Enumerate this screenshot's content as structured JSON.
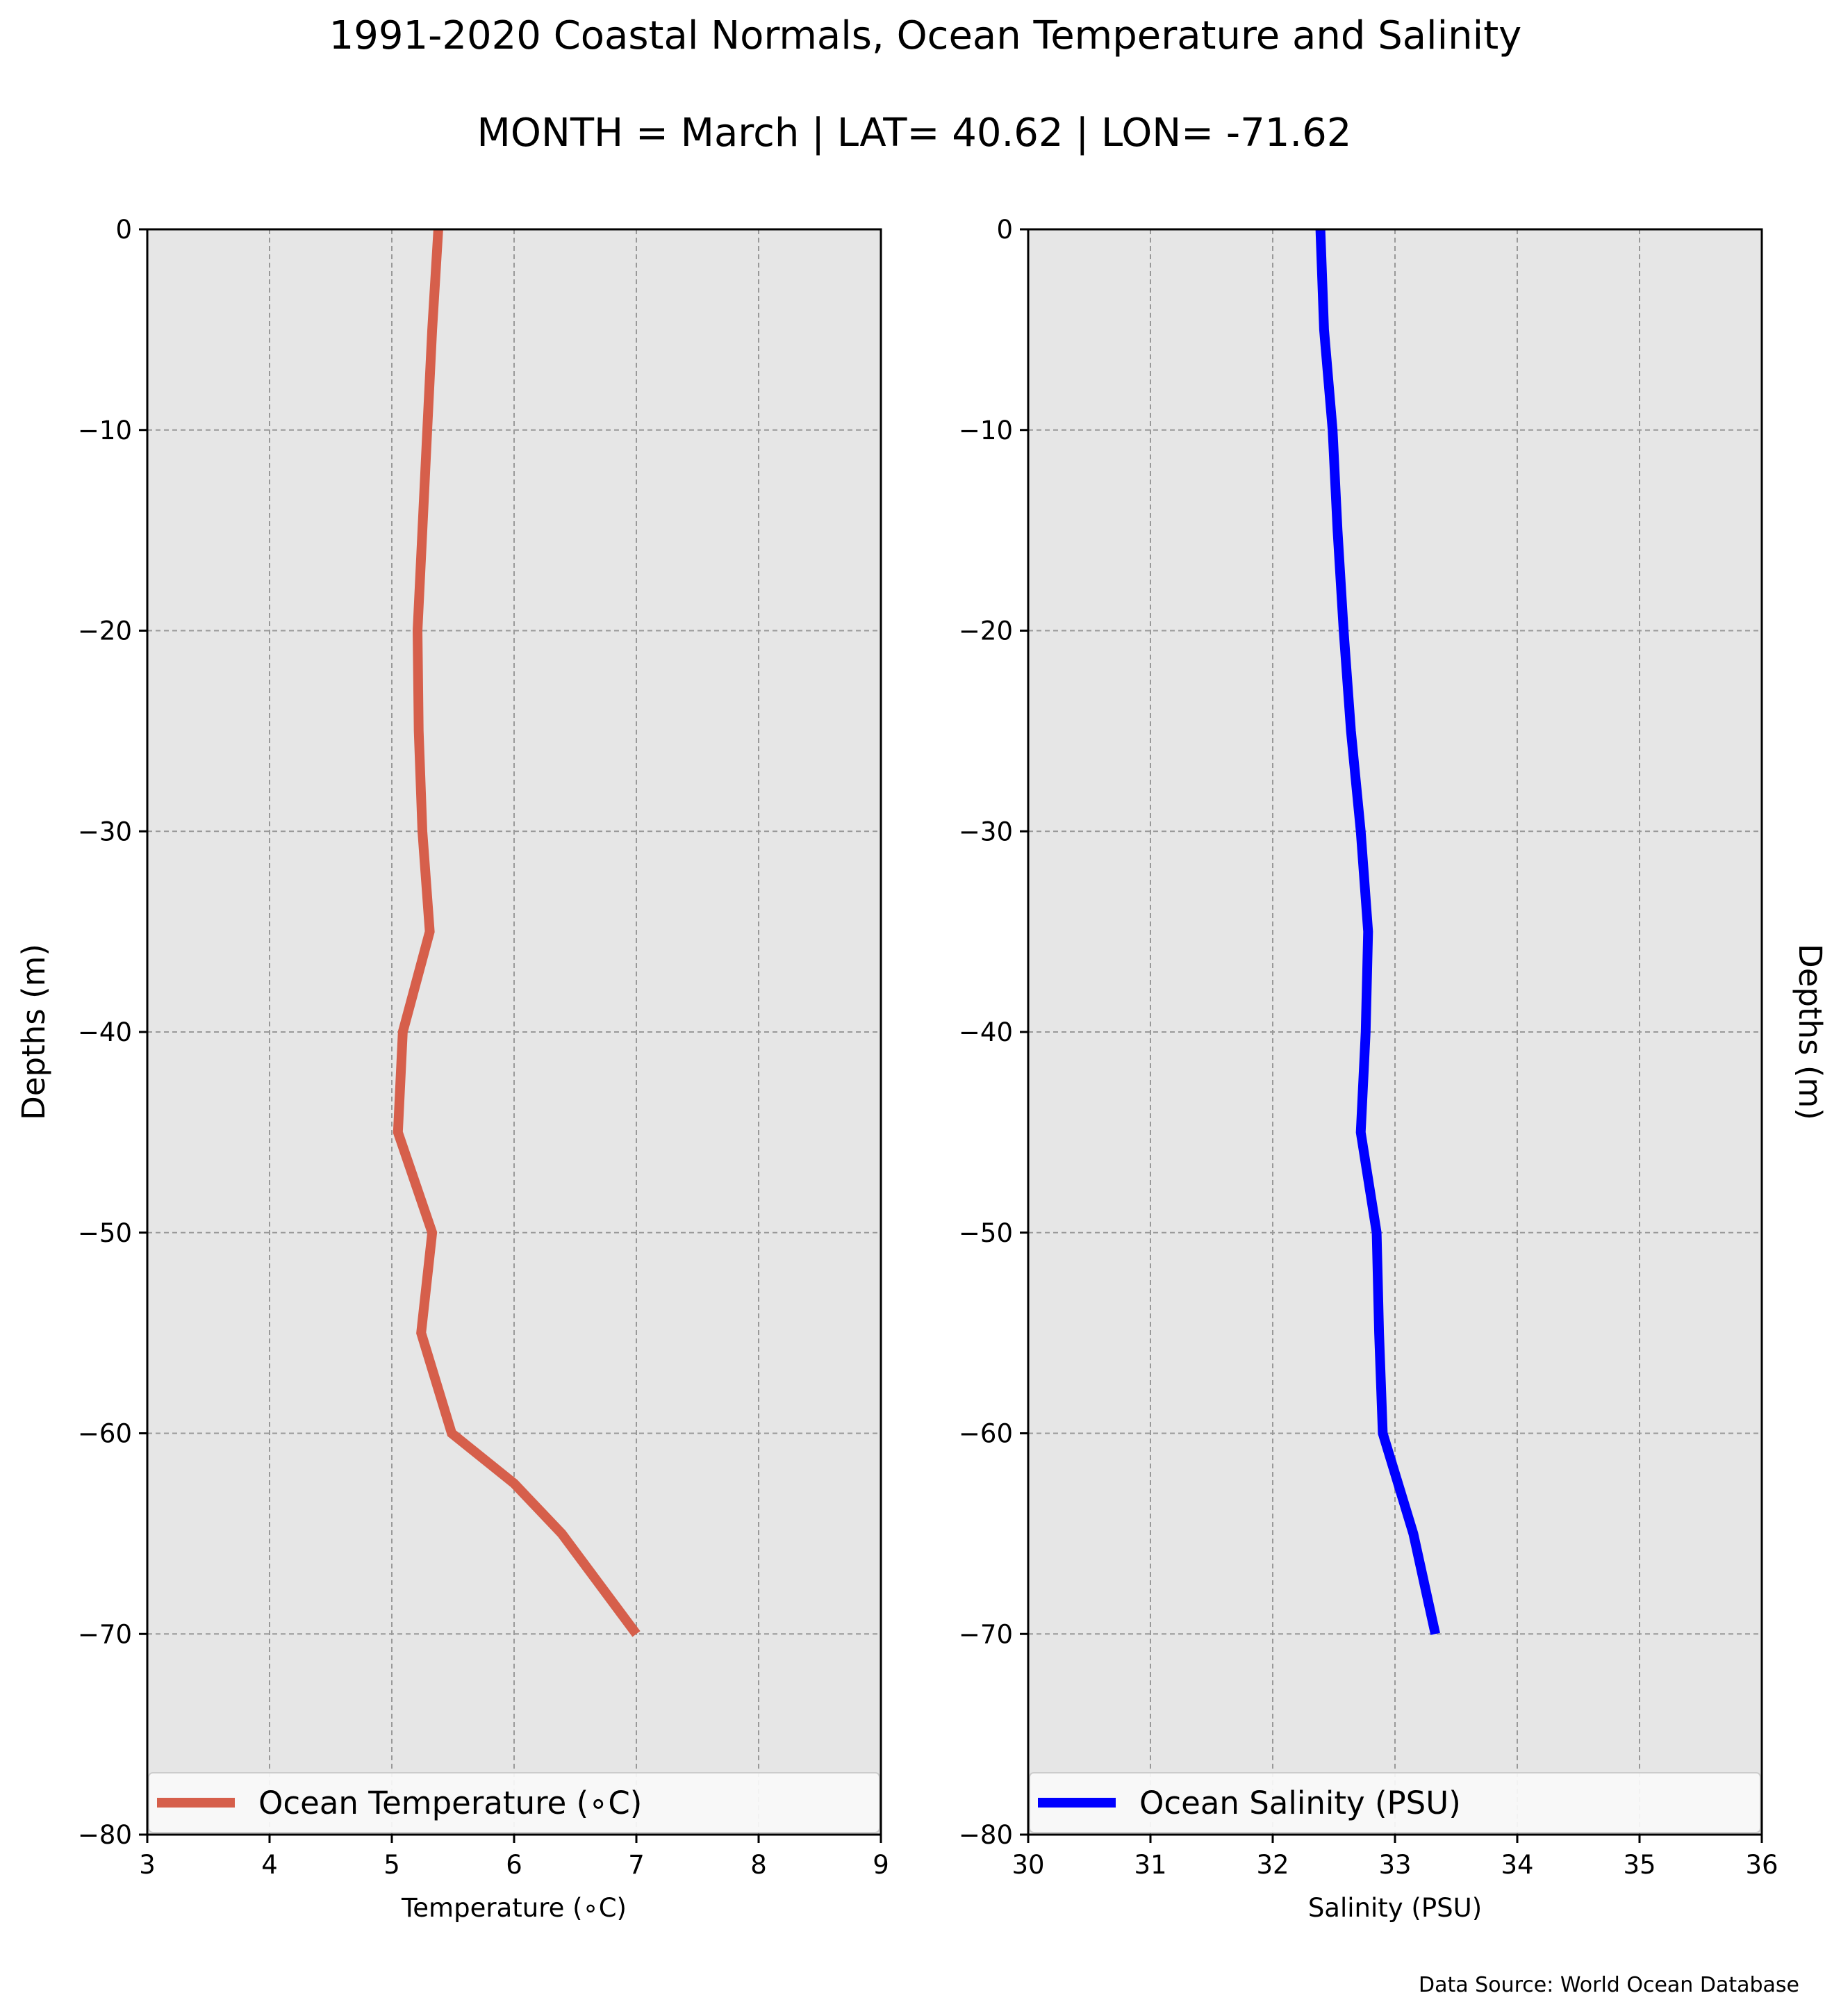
{
  "title": "1991-2020 Coastal Normals, Ocean Temperature and Salinity",
  "subtitle": "MONTH = March | LAT= 40.62 | LON= -71.62",
  "source_note": "Data Source: World Ocean Database",
  "chart_data": [
    {
      "type": "line",
      "xlabel": "Temperature (∘C)",
      "ylabel": "Depths (m)",
      "xlim": [
        3,
        9
      ],
      "ylim": [
        -80,
        0
      ],
      "xticks": [
        "3",
        "4",
        "5",
        "6",
        "7",
        "8",
        "9"
      ],
      "yticks": [
        "0",
        "−10",
        "−20",
        "−30",
        "−40",
        "−50",
        "−60",
        "−70",
        "−80"
      ],
      "grid": true,
      "legend_position": "bottom",
      "series": [
        {
          "name": "Ocean Temperature (∘C)",
          "color": "#d65f4b",
          "x": [
            5.38,
            5.33,
            5.29,
            5.25,
            5.21,
            5.22,
            5.25,
            5.31,
            5.09,
            5.05,
            5.33,
            5.24,
            5.49,
            6.0,
            6.39,
            7.0
          ],
          "y": [
            0,
            -5,
            -10,
            -15,
            -20,
            -25,
            -30,
            -35,
            -40,
            -45,
            -50,
            -55,
            -60,
            -62.5,
            -65,
            -70
          ]
        }
      ]
    },
    {
      "type": "line",
      "xlabel": "Salinity (PSU)",
      "ylabel": "Depths (m)",
      "xlim": [
        30,
        36
      ],
      "ylim": [
        -80,
        0
      ],
      "xticks": [
        "30",
        "31",
        "32",
        "33",
        "34",
        "35",
        "36"
      ],
      "yticks": [
        "0",
        "−10",
        "−20",
        "−30",
        "−40",
        "−50",
        "−60",
        "−70",
        "−80"
      ],
      "grid": true,
      "legend_position": "bottom",
      "series": [
        {
          "name": "Ocean Salinity (PSU)",
          "color": "#0000ff",
          "x": [
            32.39,
            32.42,
            32.49,
            32.53,
            32.58,
            32.64,
            32.72,
            32.78,
            32.76,
            32.72,
            32.85,
            32.87,
            32.9,
            33.15,
            33.33
          ],
          "y": [
            0,
            -5,
            -10,
            -15,
            -20,
            -25,
            -30,
            -35,
            -40,
            -45,
            -50,
            -55,
            -60,
            -65,
            -70
          ]
        }
      ]
    }
  ]
}
